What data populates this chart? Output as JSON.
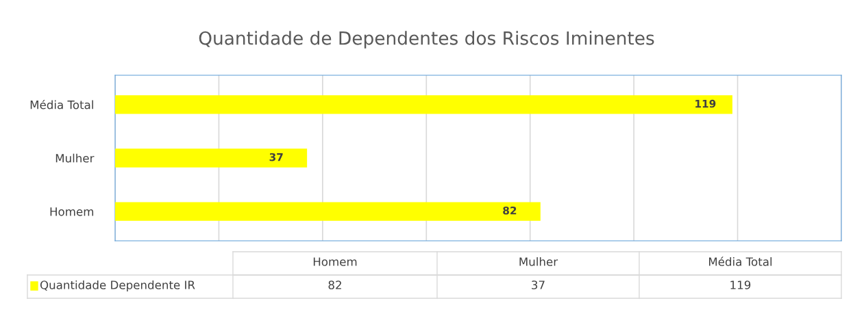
{
  "chart_data": {
    "type": "bar",
    "orientation": "horizontal",
    "title": "Quantidade de Dependentes dos Riscos Iminentes",
    "categories": [
      "Média Total",
      "Mulher",
      "Homem"
    ],
    "series": [
      {
        "name": "Quantidade Dependente IR",
        "color": "#ffff00",
        "values": [
          119,
          37,
          82
        ]
      }
    ],
    "annotations": [
      "82",
      "37",
      "119"
    ],
    "xlim": [
      0,
      140
    ],
    "xticks": [
      {
        "value": 0,
        "label": null
      },
      {
        "value": 20,
        "label": null
      },
      {
        "value": 40,
        "label": null
      },
      {
        "value": 60,
        "label": null
      },
      {
        "value": 80,
        "label": null
      },
      {
        "value": 100,
        "label": null
      },
      {
        "value": 120,
        "label": null
      },
      {
        "value": 140,
        "label": null
      }
    ],
    "tick_labels": "y",
    "grid": "x",
    "data_labels": true,
    "legend": "bottom"
  }
}
